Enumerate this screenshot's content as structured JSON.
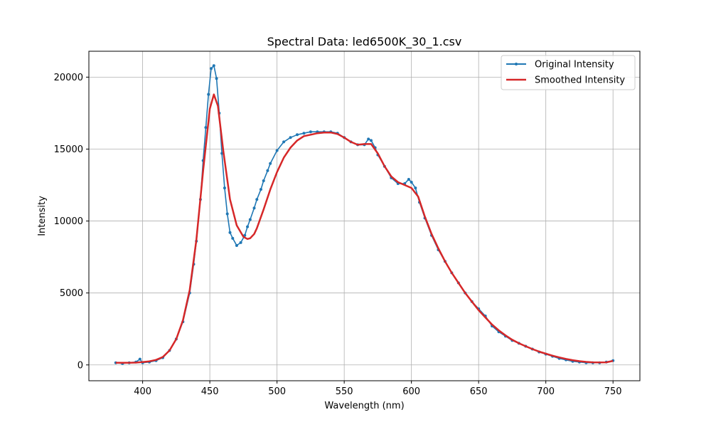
{
  "chart_data": {
    "type": "line",
    "title": "Spectral Data: led6500K_30_1.csv",
    "xlabel": "Wavelength (nm)",
    "ylabel": "Intensity",
    "xlim": [
      360,
      770
    ],
    "ylim": [
      -1100,
      21800
    ],
    "xticks": [
      400,
      450,
      500,
      550,
      600,
      650,
      700,
      750
    ],
    "xtick_labels": [
      "400",
      "450",
      "500",
      "550",
      "600",
      "650",
      "700",
      "750"
    ],
    "yticks": [
      0,
      5000,
      10000,
      15000,
      20000
    ],
    "ytick_labels": [
      "0",
      "5000",
      "10000",
      "15000",
      "20000"
    ],
    "grid": true,
    "legend_position": "top-right",
    "series": [
      {
        "name": "Original Intensity",
        "color": "#1f77b4",
        "style": "line-with-markers",
        "x": [
          380,
          385,
          390,
          395,
          398,
          400,
          405,
          410,
          415,
          420,
          425,
          430,
          435,
          438,
          440,
          443,
          445,
          447,
          449,
          451,
          453,
          455,
          457,
          459,
          461,
          463,
          465,
          467,
          470,
          473,
          476,
          478,
          480,
          483,
          485,
          488,
          490,
          493,
          495,
          500,
          505,
          510,
          515,
          520,
          525,
          530,
          535,
          540,
          545,
          550,
          555,
          560,
          565,
          568,
          570,
          573,
          575,
          580,
          585,
          590,
          595,
          598,
          600,
          603,
          606,
          610,
          615,
          620,
          625,
          630,
          635,
          640,
          645,
          650,
          655,
          660,
          665,
          670,
          675,
          680,
          685,
          690,
          695,
          700,
          705,
          710,
          715,
          720,
          725,
          730,
          735,
          740,
          745,
          750
        ],
        "y": [
          150,
          100,
          150,
          200,
          400,
          150,
          200,
          300,
          500,
          1000,
          1800,
          3000,
          5000,
          7000,
          8600,
          11500,
          14200,
          16500,
          18800,
          20600,
          20800,
          19900,
          17500,
          14700,
          12300,
          10500,
          9200,
          8800,
          8300,
          8500,
          9000,
          9600,
          10100,
          10900,
          11500,
          12200,
          12800,
          13500,
          14000,
          14900,
          15500,
          15800,
          16000,
          16100,
          16200,
          16200,
          16200,
          16200,
          16100,
          15800,
          15500,
          15300,
          15300,
          15700,
          15600,
          15100,
          14600,
          13800,
          13000,
          12600,
          12600,
          12900,
          12700,
          12300,
          11300,
          10200,
          9000,
          8000,
          7200,
          6400,
          5700,
          5000,
          4400,
          3900,
          3400,
          2700,
          2300,
          2000,
          1700,
          1500,
          1300,
          1100,
          900,
          750,
          600,
          450,
          350,
          250,
          200,
          150,
          150,
          150,
          200,
          300
        ]
      },
      {
        "name": "Smoothed Intensity",
        "color": "#d62728",
        "style": "line",
        "x": [
          380,
          385,
          390,
          395,
          400,
          405,
          410,
          415,
          420,
          425,
          430,
          435,
          440,
          445,
          450,
          453,
          456,
          460,
          465,
          470,
          475,
          478,
          480,
          483,
          485,
          490,
          495,
          500,
          505,
          510,
          515,
          520,
          525,
          530,
          535,
          540,
          545,
          550,
          555,
          560,
          565,
          570,
          575,
          580,
          585,
          590,
          595,
          600,
          605,
          610,
          615,
          620,
          625,
          630,
          635,
          640,
          645,
          650,
          655,
          660,
          665,
          670,
          675,
          680,
          685,
          690,
          695,
          700,
          705,
          710,
          715,
          720,
          725,
          730,
          735,
          740,
          745,
          750
        ],
        "y": [
          150,
          150,
          150,
          160,
          200,
          250,
          350,
          550,
          1000,
          1800,
          3100,
          5200,
          8700,
          13500,
          17800,
          18800,
          18000,
          14900,
          11500,
          9700,
          8900,
          8750,
          8800,
          9100,
          9500,
          10800,
          12200,
          13400,
          14400,
          15100,
          15600,
          15900,
          16000,
          16100,
          16150,
          16150,
          16050,
          15800,
          15500,
          15300,
          15350,
          15350,
          14700,
          13800,
          13100,
          12700,
          12500,
          12300,
          11700,
          10300,
          9100,
          8100,
          7200,
          6400,
          5700,
          5000,
          4400,
          3800,
          3300,
          2800,
          2400,
          2050,
          1750,
          1500,
          1300,
          1100,
          930,
          780,
          640,
          520,
          420,
          330,
          260,
          210,
          180,
          170,
          180,
          280
        ]
      }
    ]
  }
}
